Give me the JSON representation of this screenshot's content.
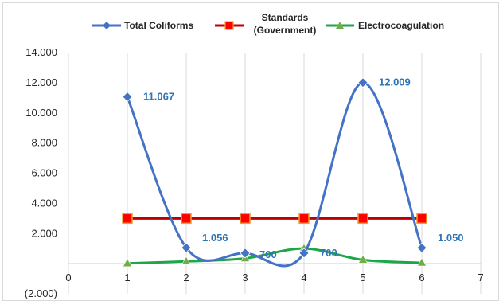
{
  "chart_data": {
    "type": "line",
    "title": "",
    "xlabel": "",
    "ylabel": "",
    "xlim": [
      0,
      7
    ],
    "ylim": [
      -2000,
      14000
    ],
    "x_ticks": [
      "0",
      "1",
      "2",
      "3",
      "4",
      "5",
      "6",
      "7"
    ],
    "y_ticks": [
      {
        "value": 14000,
        "label": "14.000"
      },
      {
        "value": 12000,
        "label": "12.000"
      },
      {
        "value": 10000,
        "label": "10.000"
      },
      {
        "value": 8000,
        "label": "8.000"
      },
      {
        "value": 6000,
        "label": "6.000"
      },
      {
        "value": 4000,
        "label": "4.000"
      },
      {
        "value": 2000,
        "label": "2.000"
      },
      {
        "value": 0,
        "label": "-"
      },
      {
        "value": -2000,
        "label": "(2.000)"
      }
    ],
    "grid": "vertical",
    "legend_position": "top",
    "series": [
      {
        "name": "Total Coliforms",
        "color": "#4472c4",
        "marker": "diamond",
        "smooth": true,
        "x": [
          1,
          2,
          3,
          4,
          5,
          6
        ],
        "y": [
          11067,
          1056,
          700,
          700,
          12009,
          1050
        ],
        "labels": [
          "11.067",
          "1.056",
          "700",
          "700",
          "12.009",
          "1.050"
        ]
      },
      {
        "name": "Standards\n(Government)",
        "color": "#c00000",
        "marker_color": "#ff0000",
        "marker_edge": "#f0a030",
        "marker": "square",
        "smooth": false,
        "x": [
          1,
          2,
          3,
          4,
          5,
          6
        ],
        "y": [
          3000,
          3000,
          3000,
          3000,
          3000,
          3000
        ]
      },
      {
        "name": "Electrocoagulation",
        "color": "#1ea64a",
        "marker_color": "#70ad47",
        "marker": "triangle",
        "smooth": true,
        "x": [
          1,
          2,
          3,
          4,
          5,
          6
        ],
        "y": [
          20,
          150,
          350,
          1000,
          250,
          60
        ]
      }
    ],
    "data_label_color": "#2e75b6"
  }
}
